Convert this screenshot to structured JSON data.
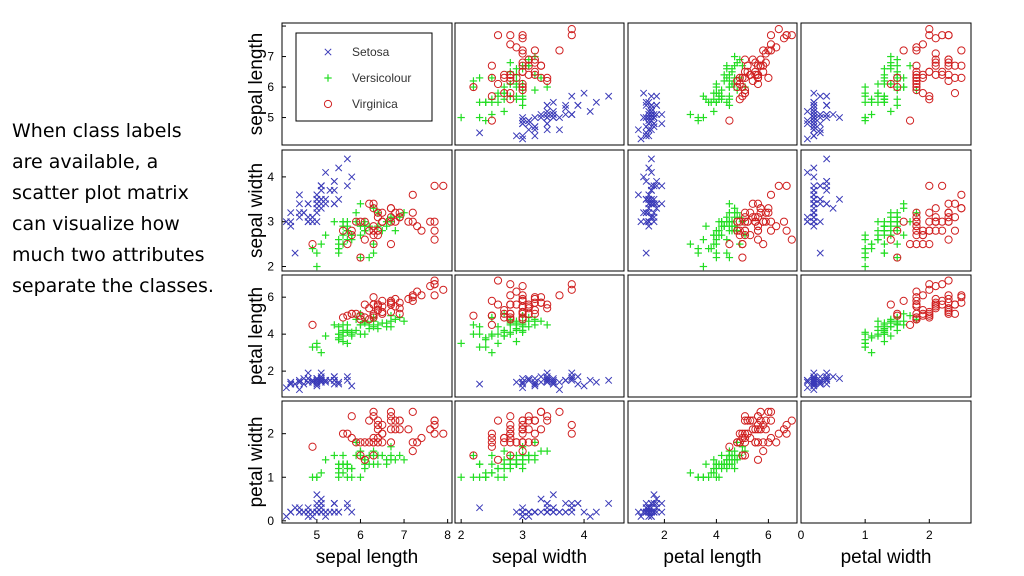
{
  "caption": {
    "lines": [
      "When class labels",
      "are available, a",
      "scatter plot matrix",
      "can visualize how",
      "much two attributes",
      "separate the classes."
    ]
  },
  "chart_data": {
    "type": "scatter",
    "title": "",
    "variables": [
      "sepal length",
      "sepal width",
      "petal length",
      "petal width"
    ],
    "ranges": [
      [
        4.3,
        7.9
      ],
      [
        2.0,
        4.4
      ],
      [
        1.0,
        6.9
      ],
      [
        0.0,
        2.5
      ]
    ],
    "x_ticks": [
      [
        5,
        6,
        7,
        8
      ],
      [
        2,
        3,
        4
      ],
      [
        2,
        4,
        6
      ],
      [
        0,
        1,
        2
      ]
    ],
    "y_ticks": [
      [
        5,
        6,
        7,
        8
      ],
      [
        2,
        3,
        4
      ],
      [
        2,
        4,
        6
      ],
      [
        0,
        1,
        2
      ]
    ],
    "x_tick_labels": [
      [
        "5",
        "6",
        "7",
        "8"
      ],
      [
        "2",
        "3",
        "4"
      ],
      [
        "2",
        "4",
        "6"
      ],
      [
        "0",
        "1",
        "2"
      ]
    ],
    "y_tick_labels": [
      [
        "5",
        "6",
        "7",
        ""
      ],
      [
        "2",
        "3",
        "4"
      ],
      [
        "2",
        "4",
        "6"
      ],
      [
        "0",
        "1",
        "2"
      ]
    ],
    "diagonal_empty": true,
    "legend": {
      "placement": "top-left of first panel",
      "entries": [
        {
          "name": "Setosa",
          "marker": "x",
          "color": "#3a3ab8"
        },
        {
          "name": "Versicolour",
          "marker": "+",
          "color": "#22dd22"
        },
        {
          "name": "Virginica",
          "marker": "o",
          "color": "#d02020"
        }
      ]
    },
    "series": [
      {
        "name": "Setosa",
        "columns": [
          "sepal length",
          "sepal width",
          "petal length",
          "petal width"
        ],
        "points": [
          [
            5.1,
            3.5,
            1.4,
            0.2
          ],
          [
            4.9,
            3.0,
            1.4,
            0.2
          ],
          [
            4.7,
            3.2,
            1.3,
            0.2
          ],
          [
            4.6,
            3.1,
            1.5,
            0.2
          ],
          [
            5.0,
            3.6,
            1.4,
            0.2
          ],
          [
            5.4,
            3.9,
            1.7,
            0.4
          ],
          [
            4.6,
            3.4,
            1.4,
            0.3
          ],
          [
            5.0,
            3.4,
            1.5,
            0.2
          ],
          [
            4.4,
            2.9,
            1.4,
            0.2
          ],
          [
            4.9,
            3.1,
            1.5,
            0.1
          ],
          [
            5.4,
            3.7,
            1.5,
            0.2
          ],
          [
            4.8,
            3.4,
            1.6,
            0.2
          ],
          [
            4.8,
            3.0,
            1.4,
            0.1
          ],
          [
            4.3,
            3.0,
            1.1,
            0.1
          ],
          [
            5.8,
            4.0,
            1.2,
            0.2
          ],
          [
            5.7,
            4.4,
            1.5,
            0.4
          ],
          [
            5.4,
            3.9,
            1.3,
            0.4
          ],
          [
            5.1,
            3.5,
            1.4,
            0.3
          ],
          [
            5.7,
            3.8,
            1.7,
            0.3
          ],
          [
            5.1,
            3.8,
            1.5,
            0.3
          ],
          [
            5.4,
            3.4,
            1.7,
            0.2
          ],
          [
            5.1,
            3.7,
            1.5,
            0.4
          ],
          [
            4.6,
            3.6,
            1.0,
            0.2
          ],
          [
            5.1,
            3.3,
            1.7,
            0.5
          ],
          [
            4.8,
            3.4,
            1.9,
            0.2
          ],
          [
            5.0,
            3.0,
            1.6,
            0.2
          ],
          [
            5.0,
            3.4,
            1.6,
            0.4
          ],
          [
            5.2,
            3.5,
            1.5,
            0.2
          ],
          [
            5.2,
            3.4,
            1.4,
            0.2
          ],
          [
            4.7,
            3.2,
            1.6,
            0.2
          ],
          [
            4.8,
            3.1,
            1.6,
            0.2
          ],
          [
            5.4,
            3.4,
            1.5,
            0.4
          ],
          [
            5.2,
            4.1,
            1.5,
            0.1
          ],
          [
            5.5,
            4.2,
            1.4,
            0.2
          ],
          [
            4.9,
            3.1,
            1.5,
            0.2
          ],
          [
            5.0,
            3.2,
            1.2,
            0.2
          ],
          [
            5.5,
            3.5,
            1.3,
            0.2
          ],
          [
            4.4,
            3.0,
            1.3,
            0.2
          ],
          [
            5.1,
            3.4,
            1.5,
            0.2
          ],
          [
            5.0,
            3.5,
            1.3,
            0.3
          ],
          [
            4.5,
            2.3,
            1.3,
            0.3
          ],
          [
            4.4,
            3.2,
            1.3,
            0.2
          ],
          [
            5.0,
            3.5,
            1.6,
            0.6
          ],
          [
            5.1,
            3.8,
            1.9,
            0.4
          ],
          [
            4.8,
            3.0,
            1.4,
            0.3
          ],
          [
            5.1,
            3.8,
            1.6,
            0.2
          ],
          [
            4.6,
            3.2,
            1.4,
            0.2
          ],
          [
            5.3,
            3.7,
            1.5,
            0.2
          ],
          [
            5.0,
            3.3,
            1.4,
            0.2
          ]
        ]
      },
      {
        "name": "Versicolour",
        "columns": [
          "sepal length",
          "sepal width",
          "petal length",
          "petal width"
        ],
        "points": [
          [
            7.0,
            3.2,
            4.7,
            1.4
          ],
          [
            6.4,
            3.2,
            4.5,
            1.5
          ],
          [
            6.9,
            3.1,
            4.9,
            1.5
          ],
          [
            5.5,
            2.3,
            4.0,
            1.3
          ],
          [
            6.5,
            2.8,
            4.6,
            1.5
          ],
          [
            5.7,
            2.8,
            4.5,
            1.3
          ],
          [
            6.3,
            3.3,
            4.7,
            1.6
          ],
          [
            4.9,
            2.4,
            3.3,
            1.0
          ],
          [
            6.6,
            2.9,
            4.6,
            1.3
          ],
          [
            5.2,
            2.7,
            3.9,
            1.4
          ],
          [
            5.0,
            2.0,
            3.5,
            1.0
          ],
          [
            5.9,
            3.0,
            4.2,
            1.5
          ],
          [
            6.0,
            2.2,
            4.0,
            1.0
          ],
          [
            6.1,
            2.9,
            4.7,
            1.4
          ],
          [
            5.6,
            2.9,
            3.6,
            1.3
          ],
          [
            6.7,
            3.1,
            4.4,
            1.4
          ],
          [
            5.6,
            3.0,
            4.5,
            1.5
          ],
          [
            5.8,
            2.7,
            4.1,
            1.0
          ],
          [
            6.2,
            2.2,
            4.5,
            1.5
          ],
          [
            5.6,
            2.5,
            3.9,
            1.1
          ],
          [
            5.9,
            3.2,
            4.8,
            1.8
          ],
          [
            6.1,
            2.8,
            4.0,
            1.3
          ],
          [
            6.3,
            2.5,
            4.9,
            1.5
          ],
          [
            6.1,
            2.8,
            4.7,
            1.2
          ],
          [
            6.4,
            2.9,
            4.3,
            1.3
          ],
          [
            6.6,
            3.0,
            4.4,
            1.4
          ],
          [
            6.8,
            2.8,
            4.8,
            1.4
          ],
          [
            6.7,
            3.0,
            5.0,
            1.7
          ],
          [
            6.0,
            2.9,
            4.5,
            1.5
          ],
          [
            5.7,
            2.6,
            3.5,
            1.0
          ],
          [
            5.5,
            2.4,
            3.8,
            1.1
          ],
          [
            5.5,
            2.4,
            3.7,
            1.0
          ],
          [
            5.8,
            2.7,
            3.9,
            1.2
          ],
          [
            6.0,
            2.7,
            5.1,
            1.6
          ],
          [
            5.4,
            3.0,
            4.5,
            1.5
          ],
          [
            6.0,
            3.4,
            4.5,
            1.6
          ],
          [
            6.7,
            3.1,
            4.7,
            1.5
          ],
          [
            6.3,
            2.3,
            4.4,
            1.3
          ],
          [
            5.6,
            3.0,
            4.1,
            1.3
          ],
          [
            5.5,
            2.5,
            4.0,
            1.3
          ],
          [
            5.5,
            2.6,
            4.4,
            1.2
          ],
          [
            6.1,
            3.0,
            4.6,
            1.4
          ],
          [
            5.8,
            2.6,
            4.0,
            1.2
          ],
          [
            5.0,
            2.3,
            3.3,
            1.0
          ],
          [
            5.6,
            2.7,
            4.2,
            1.3
          ],
          [
            5.7,
            3.0,
            4.2,
            1.2
          ],
          [
            5.7,
            2.9,
            4.2,
            1.3
          ],
          [
            6.2,
            2.9,
            4.3,
            1.3
          ],
          [
            5.1,
            2.5,
            3.0,
            1.1
          ],
          [
            5.7,
            2.8,
            4.1,
            1.3
          ]
        ]
      },
      {
        "name": "Virginica",
        "columns": [
          "sepal length",
          "sepal width",
          "petal length",
          "petal width"
        ],
        "points": [
          [
            6.3,
            3.3,
            6.0,
            2.5
          ],
          [
            5.8,
            2.7,
            5.1,
            1.9
          ],
          [
            7.1,
            3.0,
            5.9,
            2.1
          ],
          [
            6.3,
            2.9,
            5.6,
            1.8
          ],
          [
            6.5,
            3.0,
            5.8,
            2.2
          ],
          [
            7.6,
            3.0,
            6.6,
            2.1
          ],
          [
            4.9,
            2.5,
            4.5,
            1.7
          ],
          [
            7.3,
            2.9,
            6.3,
            1.8
          ],
          [
            6.7,
            2.5,
            5.8,
            1.8
          ],
          [
            7.2,
            3.6,
            6.1,
            2.5
          ],
          [
            6.5,
            3.2,
            5.1,
            2.0
          ],
          [
            6.4,
            2.7,
            5.3,
            1.9
          ],
          [
            6.8,
            3.0,
            5.5,
            2.1
          ],
          [
            5.7,
            2.5,
            5.0,
            2.0
          ],
          [
            5.8,
            2.8,
            5.1,
            2.4
          ],
          [
            6.4,
            3.2,
            5.3,
            2.3
          ],
          [
            6.5,
            3.0,
            5.5,
            1.8
          ],
          [
            7.7,
            3.8,
            6.7,
            2.2
          ],
          [
            7.7,
            2.6,
            6.9,
            2.3
          ],
          [
            6.0,
            2.2,
            5.0,
            1.5
          ],
          [
            6.9,
            3.2,
            5.7,
            2.3
          ],
          [
            5.6,
            2.8,
            4.9,
            2.0
          ],
          [
            7.7,
            2.8,
            6.7,
            2.0
          ],
          [
            6.3,
            2.7,
            4.9,
            1.8
          ],
          [
            6.7,
            3.3,
            5.7,
            2.1
          ],
          [
            7.2,
            3.2,
            6.0,
            1.8
          ],
          [
            6.2,
            2.8,
            4.8,
            1.8
          ],
          [
            6.1,
            3.0,
            4.9,
            1.8
          ],
          [
            6.4,
            2.8,
            5.6,
            2.1
          ],
          [
            7.2,
            3.0,
            5.8,
            1.6
          ],
          [
            7.4,
            2.8,
            6.1,
            1.9
          ],
          [
            7.9,
            3.8,
            6.4,
            2.0
          ],
          [
            6.4,
            2.8,
            5.6,
            2.2
          ],
          [
            6.3,
            2.8,
            5.1,
            1.5
          ],
          [
            6.1,
            2.6,
            5.6,
            1.4
          ],
          [
            7.7,
            3.0,
            6.1,
            2.3
          ],
          [
            6.3,
            3.4,
            5.6,
            2.4
          ],
          [
            6.4,
            3.1,
            5.5,
            1.8
          ],
          [
            6.0,
            3.0,
            4.8,
            1.8
          ],
          [
            6.9,
            3.1,
            5.4,
            2.1
          ],
          [
            6.7,
            3.1,
            5.6,
            2.4
          ],
          [
            6.9,
            3.1,
            5.1,
            2.3
          ],
          [
            6.8,
            3.2,
            5.9,
            2.3
          ],
          [
            6.7,
            3.3,
            5.7,
            2.5
          ],
          [
            6.7,
            3.0,
            5.2,
            2.3
          ],
          [
            6.3,
            2.5,
            5.0,
            1.9
          ],
          [
            6.5,
            3.0,
            5.2,
            2.0
          ],
          [
            6.2,
            3.4,
            5.4,
            2.3
          ],
          [
            5.9,
            3.0,
            5.1,
            1.8
          ]
        ]
      }
    ]
  }
}
